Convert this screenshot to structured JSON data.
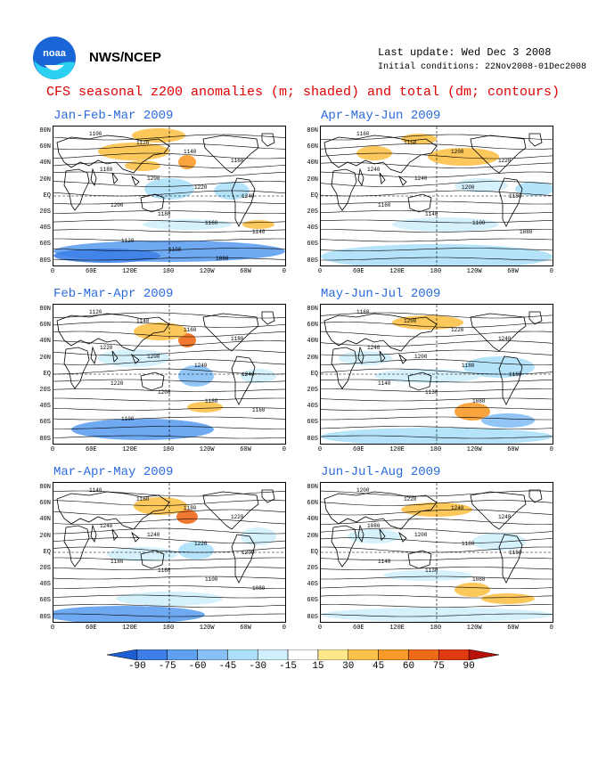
{
  "header": {
    "org": "NWS/NCEP",
    "last_update": "Last update: Wed Dec 3 2008",
    "initial_conditions": "Initial conditions: 22Nov2008-01Dec2008",
    "title": "CFS seasonal z200 anomalies (m; shaded) and total (dm; contours)"
  },
  "logo": {
    "name": "noaa-logo",
    "text": "noaa"
  },
  "panels": [
    {
      "title": "Jan-Feb-Mar 2009"
    },
    {
      "title": "Apr-May-Jun 2009"
    },
    {
      "title": "Feb-Mar-Apr 2009"
    },
    {
      "title": "May-Jun-Jul 2009"
    },
    {
      "title": "Mar-Apr-May 2009"
    },
    {
      "title": "Jun-Jul-Aug 2009"
    }
  ],
  "lat_labels": [
    "80N",
    "60N",
    "40N",
    "20N",
    "EQ",
    "20S",
    "40S",
    "60S",
    "80S"
  ],
  "lon_labels": [
    "0",
    "60E",
    "120E",
    "180",
    "120W",
    "60W",
    "0"
  ],
  "colorbar": {
    "labels": [
      "-90",
      "-75",
      "-60",
      "-45",
      "-30",
      "-15",
      "15",
      "30",
      "45",
      "60",
      "75",
      "90"
    ],
    "colors": [
      "#1f5fd6",
      "#3d7fe6",
      "#5fa0f0",
      "#86c0f5",
      "#ace0fa",
      "#cff0fc",
      "#ffffff",
      "#ffe88a",
      "#fcc24a",
      "#f89a28",
      "#ef6a18",
      "#e03a10",
      "#b81208"
    ]
  },
  "contour_labels": {
    "p0": [
      "1100",
      "1120",
      "1140",
      "1160",
      "1180",
      "1200",
      "1220",
      "1240",
      "1200",
      "1180",
      "1160",
      "1140",
      "1120",
      "1100",
      "1080"
    ],
    "p1": [
      "1160",
      "1150",
      "1200",
      "1220",
      "1240",
      "1240",
      "1200",
      "1180",
      "1160",
      "1140",
      "1100",
      "1080"
    ],
    "p2": [
      "1120",
      "1140",
      "1160",
      "1180",
      "1220",
      "1200",
      "1240",
      "1240",
      "1220",
      "1200",
      "1180",
      "1160",
      "1100"
    ],
    "p3": [
      "1160",
      "1200",
      "1220",
      "1240",
      "1240",
      "1200",
      "1180",
      "1160",
      "1140",
      "1130",
      "1080"
    ],
    "p4": [
      "1140",
      "1160",
      "1180",
      "1220",
      "1240",
      "1240",
      "1220",
      "1200",
      "1180",
      "1160",
      "1100",
      "1080"
    ],
    "p5": [
      "1200",
      "1220",
      "1240",
      "1240",
      "1080",
      "1200",
      "1180",
      "1160",
      "1140",
      "1130",
      "1080"
    ]
  }
}
